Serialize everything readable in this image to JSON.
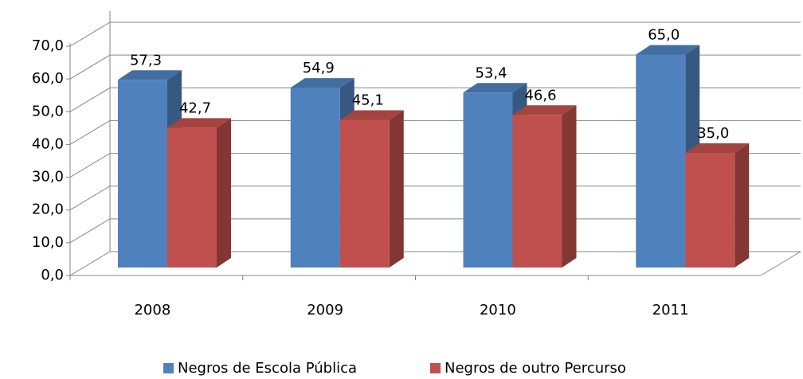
{
  "chart_data": {
    "type": "bar3d",
    "categories": [
      "2008",
      "2009",
      "2010",
      "2011"
    ],
    "series": [
      {
        "name": "Negros de Escola Pública",
        "color": "#4f81bd",
        "values": [
          57.3,
          54.9,
          53.4,
          65.0
        ],
        "value_labels": [
          "57,3",
          "54,9",
          "53,4",
          "65,0"
        ]
      },
      {
        "name": "Negros de outro Percurso",
        "color": "#c0504d",
        "values": [
          42.7,
          45.1,
          46.6,
          35.0
        ],
        "value_labels": [
          "42,7",
          "45,1",
          "46,6",
          "35,0"
        ]
      }
    ],
    "ylim": [
      0,
      70
    ],
    "yticks": [
      {
        "value": 0,
        "label": "0,0"
      },
      {
        "value": 10,
        "label": "10,0"
      },
      {
        "value": 20,
        "label": "20,0"
      },
      {
        "value": 30,
        "label": "30,0"
      },
      {
        "value": 40,
        "label": "40,0"
      },
      {
        "value": 50,
        "label": "50,0"
      },
      {
        "value": 60,
        "label": "60,0"
      },
      {
        "value": 70,
        "label": "70,0"
      }
    ],
    "grid": true,
    "legend": "bottom"
  }
}
